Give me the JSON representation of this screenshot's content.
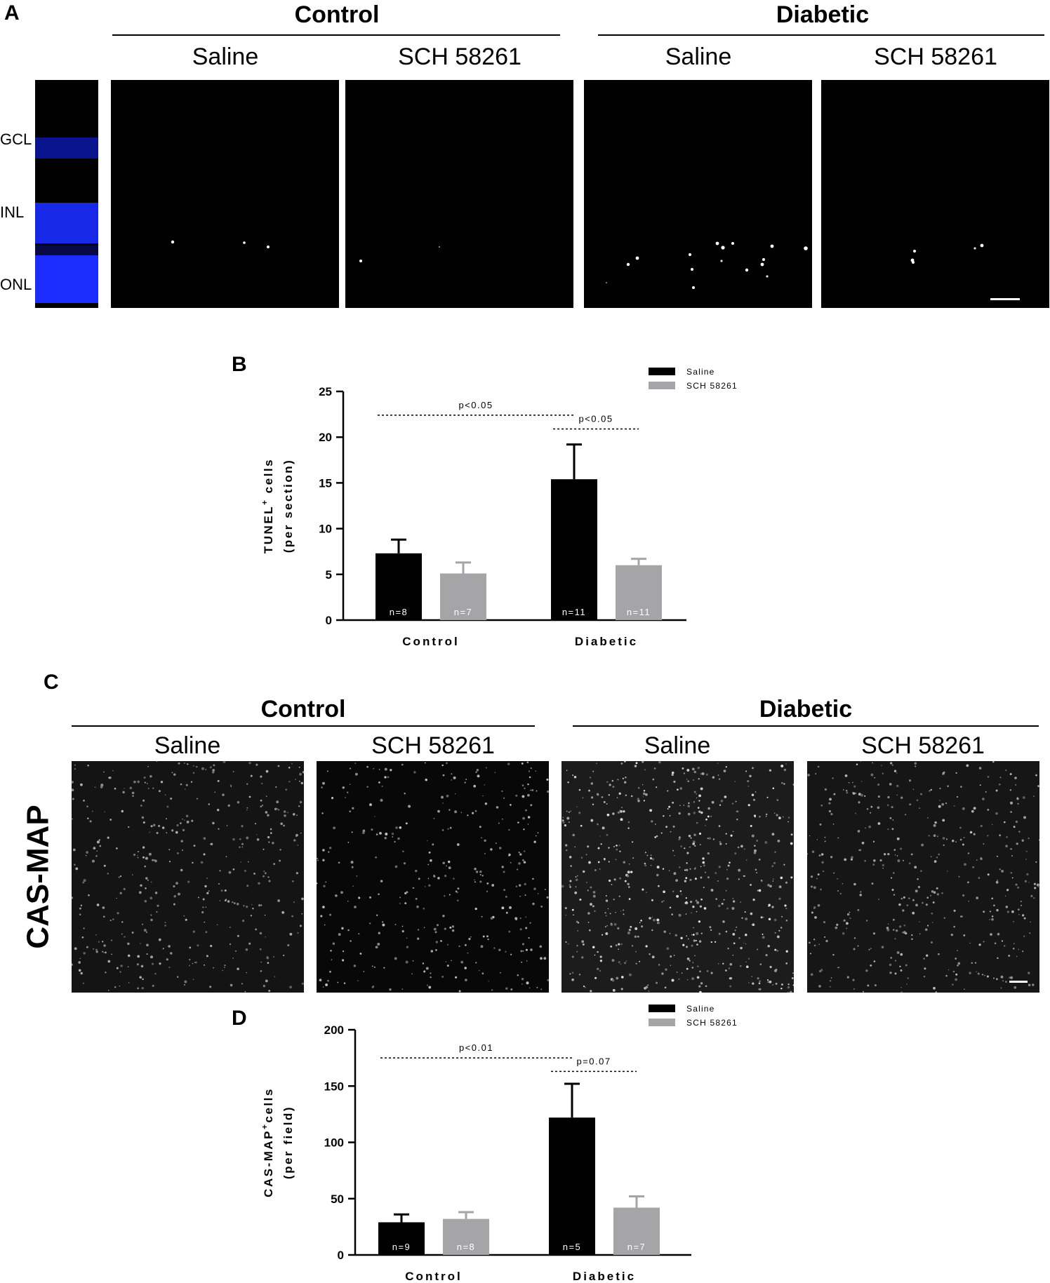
{
  "panel_a": {
    "letter": "A",
    "groups": [
      "Control",
      "Diabetic"
    ],
    "conditions": [
      "Saline",
      "SCH 58261",
      "Saline",
      "SCH 58261"
    ],
    "layers": [
      "GCL",
      "INL",
      "ONL"
    ]
  },
  "panel_c": {
    "letter": "C",
    "groups": [
      "Control",
      "Diabetic"
    ],
    "conditions": [
      "Saline",
      "SCH 58261",
      "Saline",
      "SCH 58261"
    ],
    "row_label": "CAS-MAP"
  },
  "colors": {
    "saline": "#000000",
    "sch": "#a5a5a7",
    "dapi": "#1a2cff"
  },
  "chart_data": [
    {
      "panel": "B",
      "type": "bar",
      "categories": [
        "Control",
        "Diabetic"
      ],
      "ylabel_line1": "TUNEL",
      "ylabel_sup": "+",
      "ylabel_line1_rest": " cells",
      "ylabel_line2": "(per section)",
      "ylim": [
        0,
        25
      ],
      "yticks": [
        0,
        5,
        10,
        15,
        20,
        25
      ],
      "series": [
        {
          "name": "Saline",
          "color": "#000000",
          "values": [
            7.3,
            15.4
          ],
          "errors": [
            1.5,
            3.8
          ],
          "n_labels": [
            "n=8",
            "n=11"
          ]
        },
        {
          "name": "SCH 58261",
          "color": "#a5a5a7",
          "values": [
            5.1,
            6.0
          ],
          "errors": [
            1.2,
            0.7
          ],
          "n_labels": [
            "n=7",
            "n=11"
          ]
        }
      ],
      "annotations": [
        {
          "text": "p<0.05",
          "y": 22.4,
          "from": [
            0,
            0
          ],
          "to": [
            1,
            0
          ]
        },
        {
          "text": "p<0.05",
          "y": 20.9,
          "from": [
            1,
            0
          ],
          "to": [
            1,
            1
          ]
        }
      ],
      "legend": "top-right",
      "grid": false
    },
    {
      "panel": "D",
      "type": "bar",
      "categories": [
        "Control",
        "Diabetic"
      ],
      "ylabel_line1": "CAS-MAP",
      "ylabel_sup": "+",
      "ylabel_line1_rest": "cells",
      "ylabel_line2": "(per field)",
      "ylim": [
        0,
        200
      ],
      "yticks": [
        0,
        50,
        100,
        150,
        200
      ],
      "series": [
        {
          "name": "Saline",
          "color": "#000000",
          "values": [
            29,
            122
          ],
          "errors": [
            7,
            30
          ],
          "n_labels": [
            "n=9",
            "n=5"
          ]
        },
        {
          "name": "SCH 58261",
          "color": "#a5a5a7",
          "values": [
            32,
            42
          ],
          "errors": [
            6,
            10
          ],
          "n_labels": [
            "n=8",
            "n=7"
          ]
        }
      ],
      "annotations": [
        {
          "text": "p<0.01",
          "y": 175,
          "from": [
            0,
            0
          ],
          "to": [
            1,
            0
          ]
        },
        {
          "text": "p=0.07",
          "y": 163,
          "from": [
            1,
            0
          ],
          "to": [
            1,
            1
          ]
        }
      ],
      "legend": "top-right",
      "grid": false
    }
  ]
}
